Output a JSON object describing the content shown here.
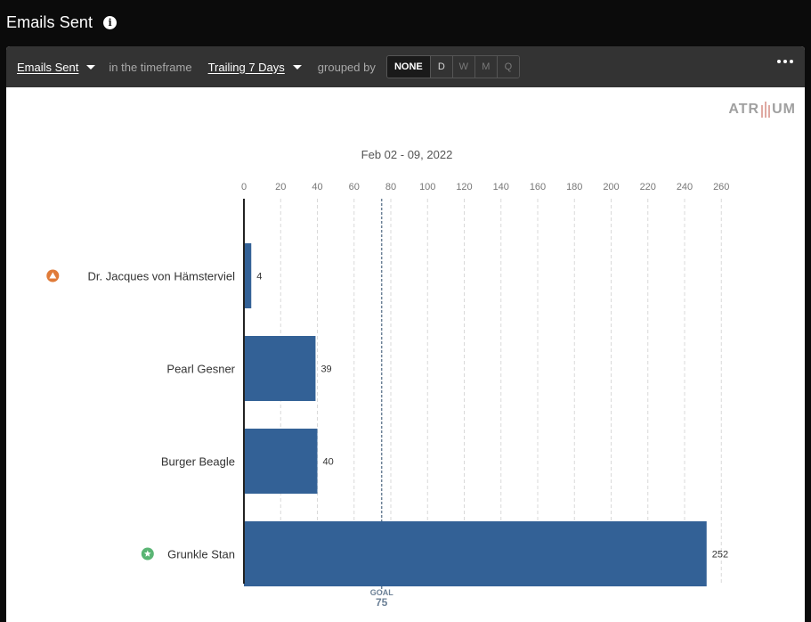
{
  "page": {
    "title": "Emails Sent"
  },
  "toolbar": {
    "metric": "Emails Sent",
    "timeframe_prefix": "in the timeframe",
    "timeframe": "Trailing 7 Days",
    "grouped_by_label": "grouped by",
    "grouping_options": [
      "NONE",
      "D",
      "W",
      "M",
      "Q"
    ],
    "selected_grouping": "NONE"
  },
  "logo": {
    "left": "ATR",
    "right": "UM"
  },
  "chart_data": {
    "type": "bar",
    "orientation": "horizontal",
    "title": "Feb 02 - 09, 2022",
    "categories": [
      "Dr. Jacques von Hämsterviel",
      "Pearl Gesner",
      "Burger Beagle",
      "Grunkle Stan"
    ],
    "values": [
      4,
      39,
      40,
      252
    ],
    "category_badges": [
      "warning",
      "none",
      "none",
      "star"
    ],
    "xlim": [
      0,
      260
    ],
    "ticks": [
      0,
      20,
      40,
      60,
      80,
      100,
      120,
      140,
      160,
      180,
      200,
      220,
      240,
      260
    ],
    "grid": true,
    "goal": {
      "label": "GOAL",
      "value": 75
    },
    "bar_color": "#336196",
    "warning_color": "#e07b39",
    "star_color": "#5ab574",
    "goal_color": "#6c8197"
  }
}
